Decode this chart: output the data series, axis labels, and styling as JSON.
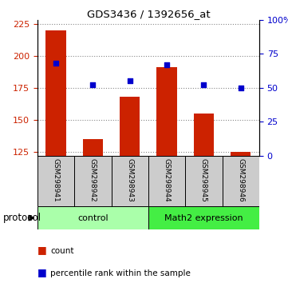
{
  "title": "GDS3436 / 1392656_at",
  "samples": [
    "GSM298941",
    "GSM298942",
    "GSM298943",
    "GSM298944",
    "GSM298945",
    "GSM298946"
  ],
  "counts": [
    220,
    135,
    168,
    191,
    155,
    125
  ],
  "percentiles": [
    68,
    52,
    55,
    67,
    52,
    50
  ],
  "ylim_left": [
    122,
    228
  ],
  "ylim_right": [
    0,
    100
  ],
  "yticks_left": [
    125,
    150,
    175,
    200,
    225
  ],
  "yticks_right": [
    0,
    25,
    50,
    75,
    100
  ],
  "ytick_labels_right": [
    "0",
    "25",
    "50",
    "75",
    "100%"
  ],
  "bar_color": "#cc2200",
  "dot_color": "#0000cc",
  "grid_color": "#aaaaaa",
  "sample_box_color": "#cccccc",
  "groups": [
    {
      "label": "control",
      "indices": [
        0,
        1,
        2
      ],
      "color": "#aaffaa"
    },
    {
      "label": "Math2 expression",
      "indices": [
        3,
        4,
        5
      ],
      "color": "#44ee44"
    }
  ],
  "protocol_label": "protocol",
  "legend_count_label": "count",
  "legend_percentile_label": "percentile rank within the sample",
  "bar_width": 0.55,
  "background_color": "#ffffff"
}
